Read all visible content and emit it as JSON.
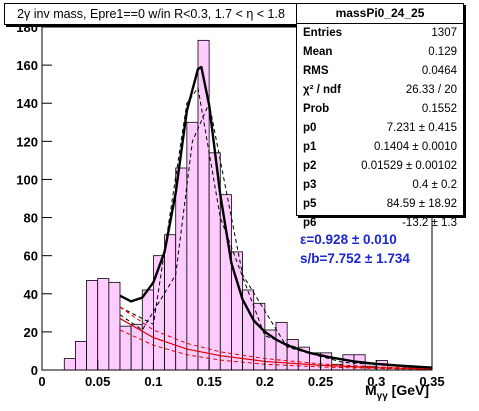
{
  "title": "2γ inv mass, Epre1==0 w/in R<0.3, 1.7 < η < 1.8",
  "stats": {
    "name": "massPi0_24_25",
    "rows": [
      {
        "label": "Entries",
        "value": "1307"
      },
      {
        "label": "Mean",
        "value": "0.129"
      },
      {
        "label": "RMS",
        "value": "0.0464"
      },
      {
        "label": "χ² / ndf",
        "value": "26.33 / 20"
      },
      {
        "label": "Prob",
        "value": "0.1552"
      },
      {
        "label": "p0",
        "value": "7.231 ± 0.415"
      },
      {
        "label": "p1",
        "value": "0.1404 ± 0.0010"
      },
      {
        "label": "p2",
        "value": "0.01529 ± 0.00102"
      },
      {
        "label": "p3",
        "value": "0.4 ± 0.2"
      },
      {
        "label": "p5",
        "value": "84.59 ± 18.92"
      },
      {
        "label": "p6",
        "value": "-13.2 ± 1.3"
      }
    ]
  },
  "fit_text": {
    "efficiency": "ε=0.928 ± 0.010",
    "sb": "s/b=7.752 ± 1.734"
  },
  "xlabel": {
    "main": "M",
    "sub": "γγ",
    "unit": " [GeV]"
  },
  "colors": {
    "fill": "#ffccff",
    "fit": "#000000",
    "background_fit": "#dd0000",
    "text_blue": "#1a26d0"
  },
  "chart_data": {
    "type": "bar",
    "xlim": [
      0,
      0.35
    ],
    "ylim": [
      0,
      180
    ],
    "xticks": [
      "0",
      "0.05",
      "0.1",
      "0.15",
      "0.2",
      "0.25",
      "0.3",
      "0.35"
    ],
    "yticks": [
      "0",
      "20",
      "40",
      "60",
      "80",
      "100",
      "120",
      "140",
      "160",
      "180"
    ],
    "bin_edges": [
      0,
      0.01,
      0.02,
      0.03,
      0.04,
      0.05,
      0.06,
      0.07,
      0.08,
      0.09,
      0.1,
      0.11,
      0.12,
      0.13,
      0.14,
      0.15,
      0.16,
      0.17,
      0.18,
      0.19,
      0.2,
      0.21,
      0.22,
      0.23,
      0.24,
      0.25,
      0.26,
      0.27,
      0.28,
      0.29,
      0.3,
      0.31,
      0.32,
      0.33,
      0.34,
      0.35
    ],
    "values": [
      0,
      0,
      6,
      15,
      47,
      48,
      46,
      23,
      24,
      42,
      60,
      71,
      106,
      130,
      173,
      114,
      92,
      62,
      42,
      35,
      21,
      25,
      16,
      12,
      9,
      9,
      3,
      8,
      8,
      2,
      5,
      0,
      1,
      1,
      0
    ],
    "dashed_upper": {
      "x": [
        0.07,
        0.1,
        0.13,
        0.14,
        0.16,
        0.2,
        0.25,
        0.3,
        0.35
      ],
      "y": [
        33,
        24,
        140,
        148,
        80,
        18,
        7,
        3,
        1
      ]
    },
    "dashed_lower": {
      "x": [
        0.07,
        0.09,
        0.12,
        0.135,
        0.15,
        0.18,
        0.22,
        0.27,
        0.35
      ],
      "y": [
        29,
        21,
        50,
        120,
        140,
        50,
        12,
        4,
        1
      ]
    },
    "fit_curve": {
      "x": [
        0.07,
        0.08,
        0.09,
        0.1,
        0.11,
        0.12,
        0.13,
        0.14,
        0.143,
        0.15,
        0.16,
        0.17,
        0.18,
        0.19,
        0.2,
        0.21,
        0.22,
        0.24,
        0.26,
        0.28,
        0.3,
        0.32,
        0.34,
        0.35
      ],
      "y": [
        39,
        36,
        38,
        46,
        62,
        93,
        136,
        158,
        159,
        139,
        92,
        56,
        37,
        26,
        20,
        16,
        13,
        9,
        6.5,
        4.5,
        3.2,
        2.3,
        1.6,
        1.3
      ]
    },
    "background_curve": {
      "x": [
        0.07,
        0.1,
        0.13,
        0.16,
        0.2,
        0.25,
        0.3,
        0.35
      ],
      "y": [
        27,
        17,
        11,
        7.5,
        4.5,
        2.5,
        1.2,
        0.6
      ]
    },
    "background_upper": {
      "x": [
        0.07,
        0.1,
        0.13,
        0.16,
        0.2,
        0.25,
        0.3,
        0.35
      ],
      "y": [
        33,
        21,
        14,
        9.5,
        6,
        3.2,
        1.6,
        0.8
      ]
    },
    "background_lower": {
      "x": [
        0.07,
        0.1,
        0.13,
        0.16,
        0.2,
        0.25,
        0.3,
        0.35
      ],
      "y": [
        21,
        13,
        8,
        5.2,
        3,
        1.6,
        0.8,
        0.4
      ]
    }
  }
}
